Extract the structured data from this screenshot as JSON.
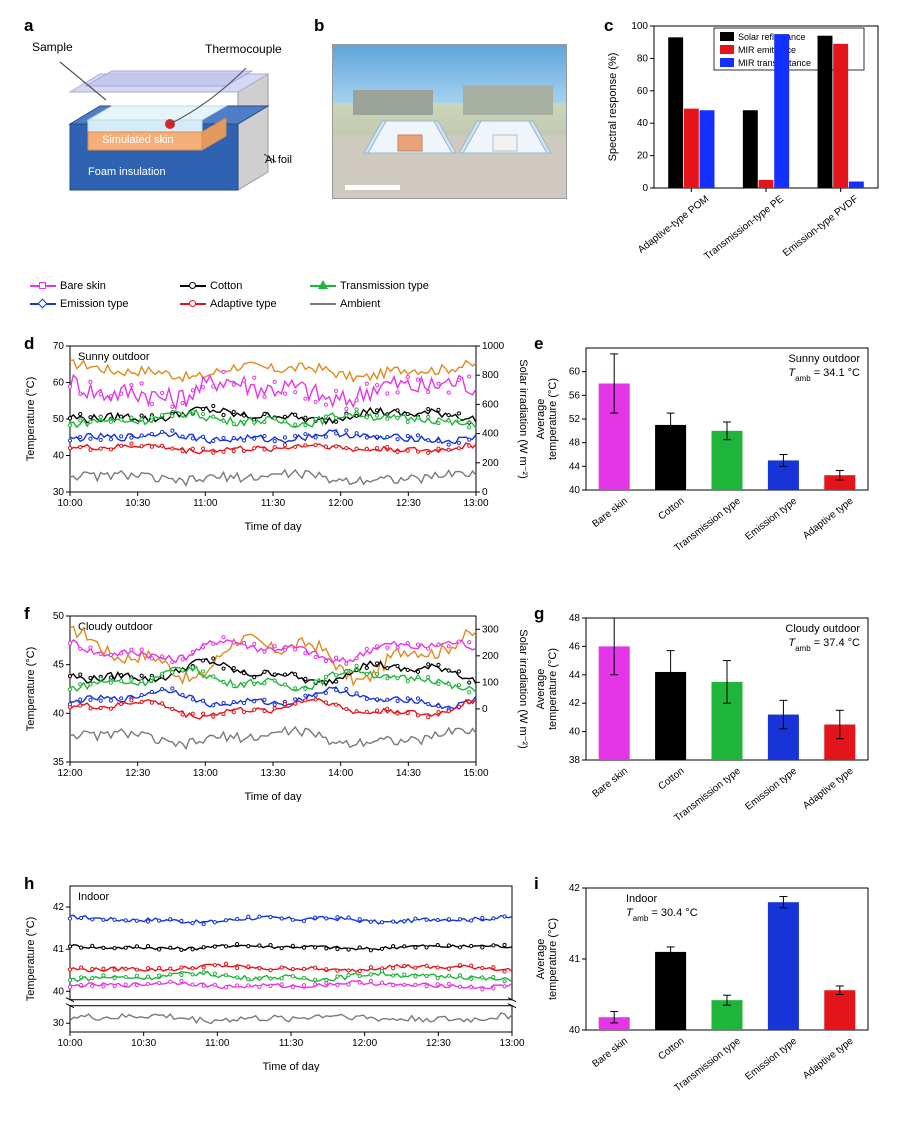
{
  "labels": {
    "a": "a",
    "b": "b",
    "c": "c",
    "d": "d",
    "e": "e",
    "f": "f",
    "g": "g",
    "h": "h",
    "i": "i"
  },
  "panel_a": {
    "sample": "Sample",
    "thermocouple": "Thermocouple",
    "skin": "Simulated skin",
    "foam": "Foam insulation",
    "al": "Al foil",
    "colors": {
      "top": "#c3c6ee",
      "sampleFace": "#e6f4fc",
      "skin": "#f5b07a",
      "foam": "#2f63b1",
      "al": "#c7c7c7",
      "tc": "#d62728"
    }
  },
  "panel_c": {
    "type": "grouped-bar",
    "yLabel": "Spectral response (%)",
    "yLim": [
      0,
      100
    ],
    "yTicks": [
      0,
      20,
      40,
      60,
      80,
      100
    ],
    "legend": [
      "Solar reflectance",
      "MIR emittance",
      "MIR transmittance"
    ],
    "legendColors": [
      "#000000",
      "#e3151a",
      "#1430ff"
    ],
    "categories": [
      "Adaptive-type POM",
      "Transmission-type PE",
      "Emission-type PVDF"
    ],
    "values": [
      [
        93,
        49,
        48
      ],
      [
        48,
        5,
        95
      ],
      [
        94,
        89,
        4
      ]
    ],
    "barColors": [
      "#000000",
      "#e3151a",
      "#1430ff"
    ],
    "bg": "#ffffff",
    "axis": "#000000",
    "fontSize": 10
  },
  "ts_legend": {
    "items": [
      {
        "label": "Bare skin",
        "color": "#e436e6",
        "mark": "square"
      },
      {
        "label": "Cotton",
        "color": "#000000",
        "mark": "circle"
      },
      {
        "label": "Transmission type",
        "color": "#1fb53a",
        "mark": "triangle"
      },
      {
        "label": "Emission type",
        "color": "#1634d8",
        "mark": "diamond"
      },
      {
        "label": "Adaptive type",
        "color": "#e3151a",
        "mark": "circle"
      },
      {
        "label": "Ambient",
        "color": "#7a7a7a",
        "mark": "none"
      }
    ],
    "positions": [
      [
        0,
        0
      ],
      [
        150,
        0
      ],
      [
        280,
        0
      ],
      [
        0,
        18
      ],
      [
        150,
        18
      ],
      [
        280,
        18
      ]
    ]
  },
  "solar_color": "#e08a1e",
  "panel_d": {
    "type": "line",
    "title": "Sunny outdoor",
    "xLabel": "Time of day",
    "yLabel": "Temperature (°C)",
    "y2Label": "Solar irradiation (W m⁻²)",
    "yLim": [
      30,
      70
    ],
    "yTicks": [
      30,
      40,
      50,
      60,
      70
    ],
    "y2Lim": [
      0,
      1000
    ],
    "y2Ticks": [
      0,
      200,
      400,
      600,
      800,
      1000
    ],
    "xTicks": [
      "10:00",
      "10:30",
      "11:00",
      "11:30",
      "12:00",
      "12:30",
      "13:00"
    ],
    "series": {
      "solar": {
        "color": "#e08a1e",
        "mean": 830,
        "amp": 60,
        "noise": 35
      },
      "bare": {
        "color": "#e436e6",
        "mean": 58,
        "amp": 4,
        "noise": 3
      },
      "cotton": {
        "color": "#000000",
        "mean": 51,
        "amp": 2,
        "noise": 1.2
      },
      "trans": {
        "color": "#1fb53a",
        "mean": 50,
        "amp": 2,
        "noise": 1.2
      },
      "emiss": {
        "color": "#1634d8",
        "mean": 45,
        "amp": 1.5,
        "noise": 1
      },
      "adapt": {
        "color": "#e3151a",
        "mean": 42,
        "amp": 1.2,
        "noise": 0.8
      },
      "amb": {
        "color": "#7a7a7a",
        "mean": 34,
        "amp": 1.5,
        "noise": 1.3
      }
    }
  },
  "panel_e": {
    "type": "bar",
    "yLabel": "Average\ntemperature (°C)",
    "title": "Sunny outdoor",
    "tamb": "T_amb = 34.1 °C",
    "yLim": [
      40,
      64
    ],
    "yTicks": [
      40,
      44,
      48,
      52,
      56,
      60
    ],
    "cats": [
      "Bare skin",
      "Cotton",
      "Transmission type",
      "Emission type",
      "Adaptive type"
    ],
    "vals": [
      58.0,
      51.0,
      50.0,
      45.0,
      42.5
    ],
    "errs": [
      5.0,
      2.0,
      1.5,
      1.0,
      0.8
    ],
    "colors": [
      "#e436e6",
      "#000000",
      "#1fb53a",
      "#1634d8",
      "#e3151a"
    ]
  },
  "panel_f": {
    "type": "line",
    "title": "Cloudy outdoor",
    "xLabel": "Time of day",
    "yLabel": "Temperature (°C)",
    "y2Label": "Solar irradiation (W m⁻²)",
    "yLim": [
      35,
      50
    ],
    "yTicks": [
      35,
      40,
      45,
      50
    ],
    "y2Lim": [
      -200,
      350
    ],
    "y2Ticks": [
      0,
      100,
      200,
      300
    ],
    "xTicks": [
      "12:00",
      "12:30",
      "13:00",
      "13:30",
      "14:00",
      "14:30",
      "15:00"
    ],
    "series": {
      "solar": {
        "color": "#e08a1e",
        "mean": 200,
        "amp": 120,
        "noise": 25
      },
      "bare": {
        "color": "#e436e6",
        "mean": 46.5,
        "amp": 1.5,
        "noise": 0.4
      },
      "cotton": {
        "color": "#000000",
        "mean": 44.2,
        "amp": 1.5,
        "noise": 0.4
      },
      "trans": {
        "color": "#1fb53a",
        "mean": 43.5,
        "amp": 1.4,
        "noise": 0.4
      },
      "emiss": {
        "color": "#1634d8",
        "mean": 41.5,
        "amp": 1.2,
        "noise": 0.3
      },
      "adapt": {
        "color": "#e3151a",
        "mean": 40.5,
        "amp": 1.2,
        "noise": 0.3
      },
      "amb": {
        "color": "#7a7a7a",
        "mean": 37.5,
        "amp": 1.0,
        "noise": 0.5
      }
    }
  },
  "panel_g": {
    "type": "bar",
    "yLabel": "Average\ntemperature (°C)",
    "title": "Cloudy outdoor",
    "tamb": "T_amb = 37.4 °C",
    "yLim": [
      38,
      48
    ],
    "yTicks": [
      38,
      40,
      42,
      44,
      46,
      48
    ],
    "cats": [
      "Bare skin",
      "Cotton",
      "Transmission type",
      "Emission type",
      "Adaptive type"
    ],
    "vals": [
      46.0,
      44.2,
      43.5,
      41.2,
      40.5
    ],
    "errs": [
      2.0,
      1.5,
      1.5,
      1.0,
      1.0
    ],
    "colors": [
      "#e436e6",
      "#000000",
      "#1fb53a",
      "#1634d8",
      "#e3151a"
    ]
  },
  "panel_h": {
    "type": "line",
    "title": "Indoor",
    "xLabel": "Time of day",
    "yLabel": "Temperature (°C)",
    "yLim": [
      29.5,
      42.5
    ],
    "break": [
      31,
      39.8
    ],
    "yTicks": [
      30,
      40,
      41,
      42
    ],
    "xTicks": [
      "10:00",
      "10:30",
      "11:00",
      "11:30",
      "12:00",
      "12:30",
      "13:00"
    ],
    "series": {
      "emiss": {
        "color": "#1634d8",
        "mean": 41.7,
        "amp": 0.08,
        "noise": 0.05
      },
      "cotton": {
        "color": "#000000",
        "mean": 41.05,
        "amp": 0.06,
        "noise": 0.04
      },
      "adapt": {
        "color": "#e3151a",
        "mean": 40.55,
        "amp": 0.08,
        "noise": 0.05
      },
      "trans": {
        "color": "#1fb53a",
        "mean": 40.35,
        "amp": 0.1,
        "noise": 0.06
      },
      "bare": {
        "color": "#e436e6",
        "mean": 40.15,
        "amp": 0.08,
        "noise": 0.05
      },
      "amb": {
        "color": "#7a7a7a",
        "mean": 30.3,
        "amp": 0.2,
        "noise": 0.2
      }
    }
  },
  "panel_i": {
    "type": "bar",
    "yLabel": "Average\ntemperature (°C)",
    "title": "Indoor",
    "tamb": "T_amb = 30.4 °C",
    "yLim": [
      40,
      42
    ],
    "yTicks": [
      40,
      41,
      42
    ],
    "cats": [
      "Bare skin",
      "Cotton",
      "Transmission type",
      "Emission type",
      "Adaptive type"
    ],
    "vals": [
      40.18,
      41.1,
      40.42,
      41.8,
      40.56
    ],
    "errs": [
      0.08,
      0.07,
      0.07,
      0.08,
      0.06
    ],
    "colors": [
      "#e436e6",
      "#000000",
      "#1fb53a",
      "#1634d8",
      "#e3151a"
    ]
  }
}
